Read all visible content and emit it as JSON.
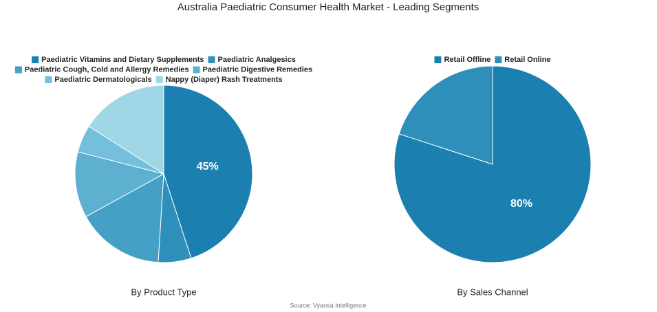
{
  "title": "Australia Paediatric Consumer Health Market - Leading Segments",
  "source": "Source: Vyansa Intelligence",
  "chart_data": [
    {
      "type": "pie",
      "subtitle": "By Product Type",
      "categories": [
        "Paediatric Vitamins and Dietary Supplements",
        "Paediatric Analgesics",
        "Paediatric Cough, Cold and Allergy Remedies",
        "Paediatric Digestive Remedies",
        "Paediatric Dermatologicals",
        "Nappy (Diaper) Rash Treatments"
      ],
      "values": [
        45,
        6,
        16,
        12,
        5,
        16
      ],
      "value_labels": [
        "45%",
        null,
        null,
        null,
        null,
        null
      ],
      "colors": [
        "#1b7fb0",
        "#2e8fba",
        "#45a0c6",
        "#5db0d0",
        "#74bfdc",
        "#9fd7e6"
      ]
    },
    {
      "type": "pie",
      "subtitle": "By Sales Channel",
      "categories": [
        "Retail Offline",
        "Retail Online"
      ],
      "values": [
        80,
        20
      ],
      "value_labels": [
        "80%",
        null
      ],
      "colors": [
        "#1b7fb0",
        "#2e8fba"
      ]
    }
  ]
}
